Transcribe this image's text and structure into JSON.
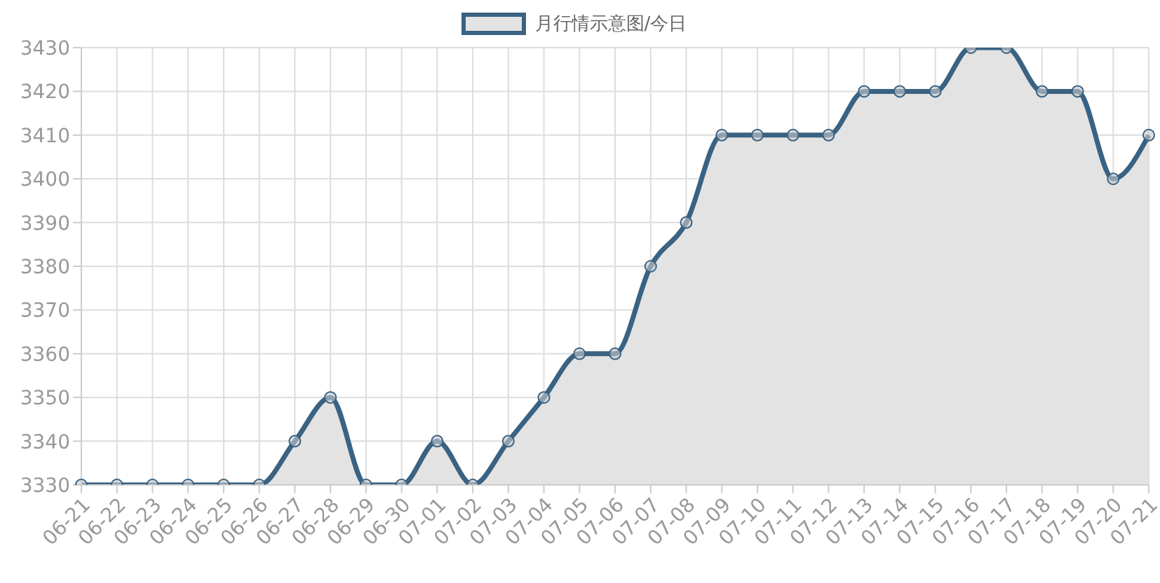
{
  "chart_data": {
    "type": "area",
    "categories": [
      "06-21",
      "06-22",
      "06-23",
      "06-24",
      "06-25",
      "06-26",
      "06-27",
      "06-28",
      "06-29",
      "06-30",
      "07-01",
      "07-02",
      "07-03",
      "07-04",
      "07-05",
      "07-06",
      "07-07",
      "07-08",
      "07-09",
      "07-10",
      "07-11",
      "07-12",
      "07-13",
      "07-14",
      "07-15",
      "07-16",
      "07-17",
      "07-18",
      "07-19",
      "07-20",
      "07-21"
    ],
    "series": [
      {
        "name": "月行情示意图/今日",
        "color": "#3a6282",
        "values": [
          3330,
          3330,
          3330,
          3330,
          3330,
          3330,
          3340,
          3350,
          3330,
          3330,
          3340,
          3330,
          3340,
          3350,
          3360,
          3360,
          3380,
          3390,
          3410,
          3410,
          3410,
          3410,
          3420,
          3420,
          3420,
          3430,
          3430,
          3420,
          3420,
          3400,
          3410
        ]
      }
    ],
    "ylim": [
      3330,
      3430
    ],
    "yticks": [
      3330,
      3340,
      3350,
      3360,
      3370,
      3380,
      3390,
      3400,
      3410,
      3420,
      3430
    ],
    "grid": true,
    "legend": "top",
    "marker": "circle",
    "line_style": "solid"
  }
}
